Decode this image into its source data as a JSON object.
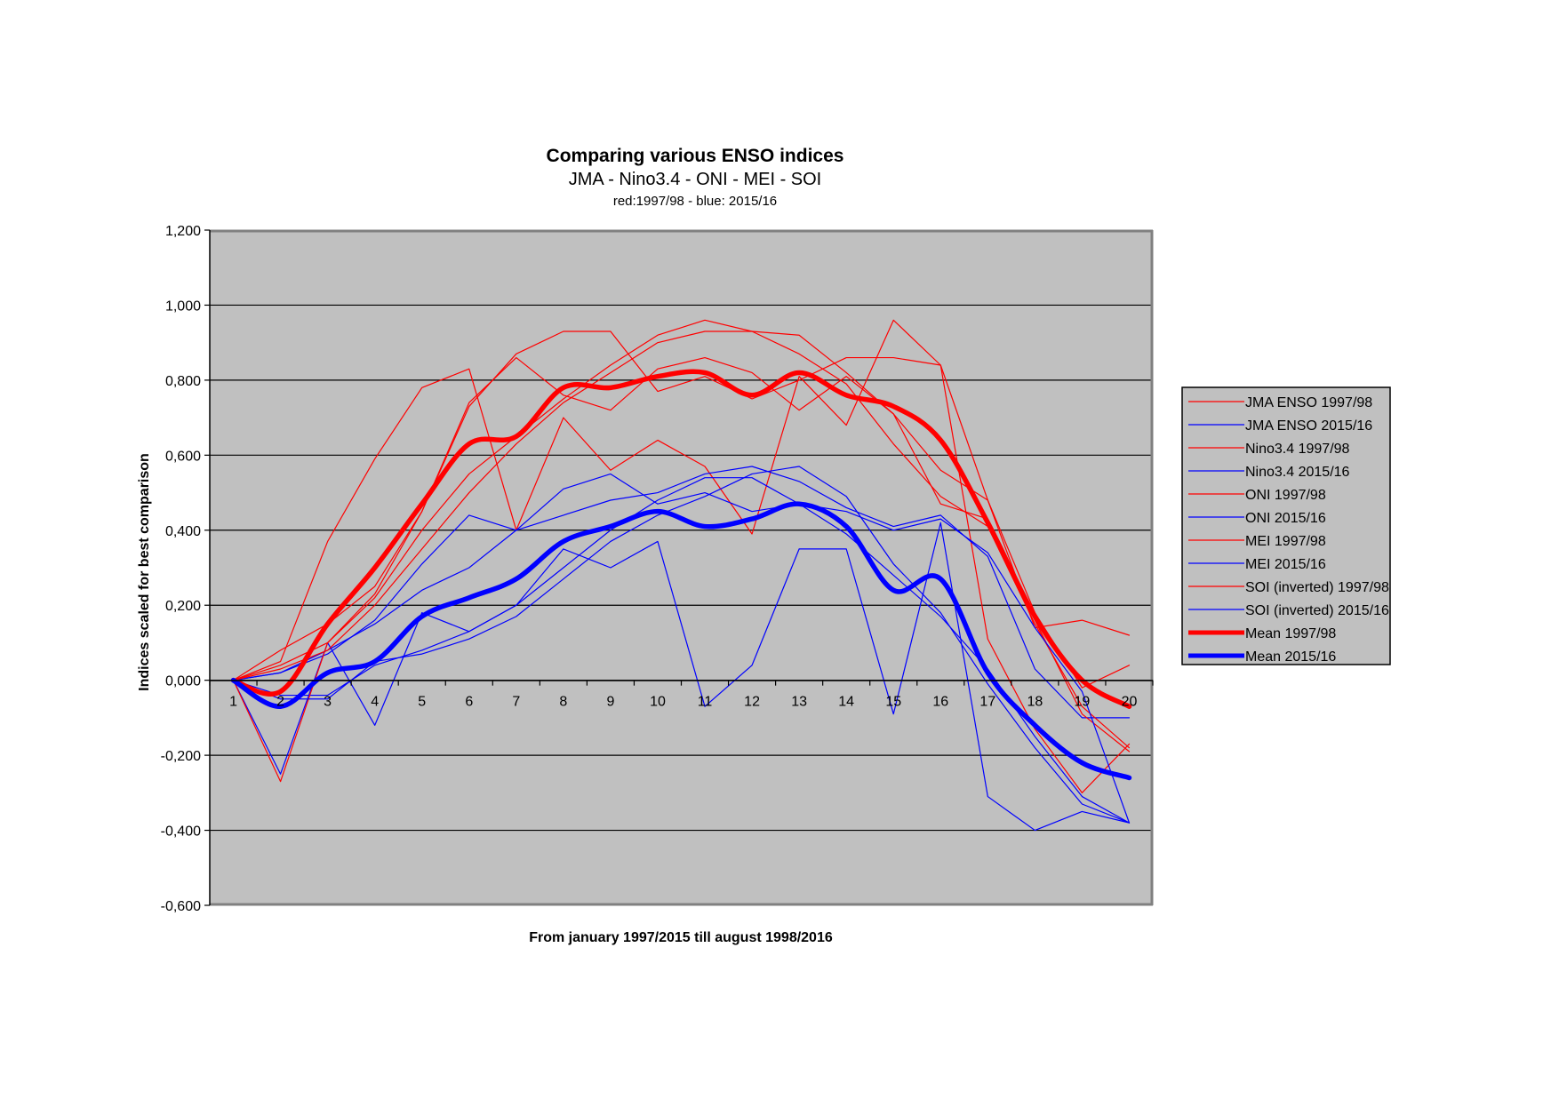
{
  "chart_data": {
    "type": "line",
    "title": "Comparing various ENSO indices",
    "subtitle": "JMA - Nino3.4 - ONI - MEI - SOI",
    "subsubtitle": "red:1997/98 - blue: 2015/16",
    "xlabel": "From january 1997/2015 till august 1998/2016",
    "ylabel": "Indices scaled for best comparison",
    "ylim": [
      -0.6,
      1.2
    ],
    "yticks": [
      1.2,
      1.0,
      0.8,
      0.6,
      0.4,
      0.2,
      0.0,
      -0.2,
      -0.4,
      -0.6
    ],
    "ytick_labels": [
      "1,200",
      "1,000",
      "0,800",
      "0,600",
      "0,400",
      "0,200",
      "0,000",
      "-0,200",
      "-0,400",
      "-0,600"
    ],
    "categories": [
      "1",
      "2",
      "3",
      "4",
      "5",
      "6",
      "7",
      "8",
      "9",
      "10",
      "11",
      "12",
      "13",
      "14",
      "15",
      "16",
      "17",
      "18",
      "19",
      "20"
    ],
    "grid": true,
    "legend_position": "right",
    "colors": {
      "red": "#ff0000",
      "blue": "#0000ff",
      "plot_bg": "#c0c0c0",
      "plot_border": "#808080"
    },
    "series": [
      {
        "name": "JMA ENSO 1997/98",
        "color": "#ff0000",
        "width": "thin",
        "values": [
          0,
          0.05,
          0.37,
          0.59,
          0.78,
          0.83,
          0.4,
          0.7,
          0.56,
          0.64,
          0.57,
          0.39,
          0.81,
          0.68,
          0.96,
          0.84,
          0.11,
          -0.13,
          -0.3,
          -0.17
        ]
      },
      {
        "name": "JMA ENSO 2015/16",
        "color": "#0000ff",
        "width": "thin",
        "values": [
          0,
          -0.25,
          0.1,
          -0.12,
          0.18,
          0.13,
          0.2,
          0.35,
          0.3,
          0.37,
          -0.07,
          0.04,
          0.35,
          0.35,
          -0.09,
          0.42,
          -0.31,
          -0.4,
          -0.35,
          -0.38
        ]
      },
      {
        "name": "Nino3.4 1997/98",
        "color": "#ff0000",
        "width": "thin",
        "values": [
          0,
          0.08,
          0.15,
          0.25,
          0.45,
          0.73,
          0.87,
          0.93,
          0.93,
          0.77,
          0.81,
          0.75,
          0.8,
          0.86,
          0.86,
          0.84,
          0.48,
          0.14,
          0.16,
          0.12
        ]
      },
      {
        "name": "Nino3.4 2015/16",
        "color": "#0000ff",
        "width": "thin",
        "values": [
          0,
          0.02,
          0.07,
          0.16,
          0.31,
          0.44,
          0.4,
          0.44,
          0.48,
          0.5,
          0.55,
          0.57,
          0.53,
          0.46,
          0.41,
          0.44,
          0.33,
          0.03,
          -0.1,
          -0.1
        ]
      },
      {
        "name": "ONI 1997/98",
        "color": "#ff0000",
        "width": "thin",
        "values": [
          0,
          0.04,
          0.1,
          0.22,
          0.4,
          0.55,
          0.65,
          0.75,
          0.84,
          0.92,
          0.96,
          0.93,
          0.87,
          0.79,
          0.63,
          0.49,
          0.41,
          0.15,
          -0.07,
          -0.18
        ]
      },
      {
        "name": "ONI 2015/16",
        "color": "#0000ff",
        "width": "thin",
        "values": [
          0,
          -0.04,
          -0.04,
          0.04,
          0.08,
          0.13,
          0.2,
          0.3,
          0.4,
          0.48,
          0.54,
          0.54,
          0.47,
          0.39,
          0.28,
          0.17,
          0.03,
          -0.15,
          -0.31,
          -0.38
        ]
      },
      {
        "name": "MEI 1997/98",
        "color": "#ff0000",
        "width": "thin",
        "values": [
          0,
          -0.27,
          0.1,
          0.23,
          0.45,
          0.74,
          0.86,
          0.76,
          0.72,
          0.83,
          0.86,
          0.82,
          0.72,
          0.81,
          0.71,
          0.47,
          0.43,
          0.16,
          -0.09,
          -0.19
        ]
      },
      {
        "name": "MEI 2015/16",
        "color": "#0000ff",
        "width": "thin",
        "values": [
          0,
          0.02,
          0.08,
          0.15,
          0.24,
          0.3,
          0.4,
          0.51,
          0.55,
          0.47,
          0.5,
          0.45,
          0.47,
          0.45,
          0.4,
          0.43,
          0.34,
          0.14,
          -0.03,
          -0.38
        ]
      },
      {
        "name": "SOI (inverted) 1997/98",
        "color": "#ff0000",
        "width": "thin",
        "values": [
          0,
          0.03,
          0.08,
          0.2,
          0.35,
          0.5,
          0.63,
          0.74,
          0.82,
          0.9,
          0.93,
          0.93,
          0.92,
          0.82,
          0.71,
          0.56,
          0.48,
          0.18,
          -0.02,
          0.04
        ]
      },
      {
        "name": "SOI (inverted) 2015/16",
        "color": "#0000ff",
        "width": "thin",
        "values": [
          0,
          -0.05,
          -0.05,
          0.05,
          0.07,
          0.11,
          0.17,
          0.27,
          0.37,
          0.44,
          0.49,
          0.55,
          0.57,
          0.49,
          0.31,
          0.18,
          -0.01,
          -0.18,
          -0.33,
          -0.38
        ]
      },
      {
        "name": "Mean 1997/98",
        "color": "#ff0000",
        "width": "thick",
        "values": [
          0,
          -0.03,
          0.15,
          0.3,
          0.47,
          0.63,
          0.65,
          0.78,
          0.78,
          0.81,
          0.82,
          0.76,
          0.82,
          0.76,
          0.73,
          0.64,
          0.42,
          0.17,
          0.0,
          -0.07
        ]
      },
      {
        "name": "Mean 2015/16",
        "color": "#0000ff",
        "width": "thick",
        "values": [
          0,
          -0.07,
          0.02,
          0.05,
          0.17,
          0.22,
          0.27,
          0.37,
          0.41,
          0.45,
          0.41,
          0.43,
          0.47,
          0.41,
          0.24,
          0.27,
          0.02,
          -0.12,
          -0.22,
          -0.26
        ]
      }
    ]
  }
}
